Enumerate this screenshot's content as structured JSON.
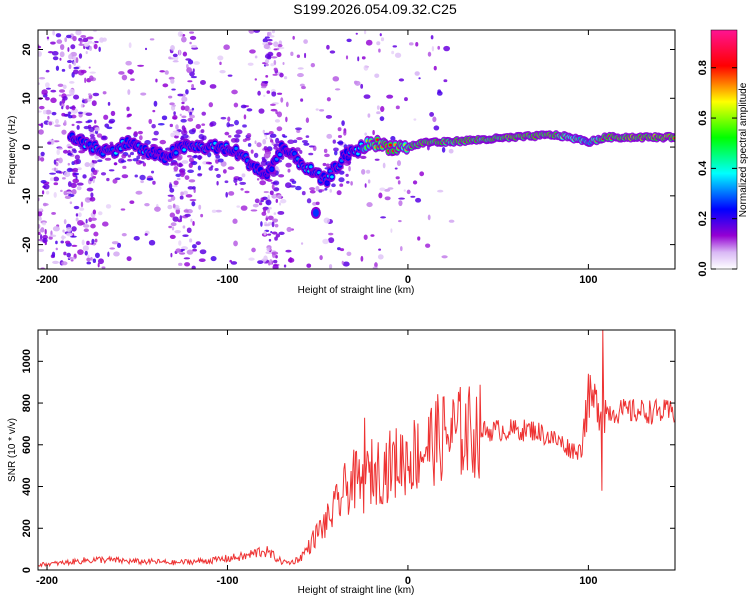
{
  "figure": {
    "title": "S199.2026.054.09.32.C25"
  },
  "chart_data": [
    {
      "type": "heatmap",
      "title": "S199.2026.054.09.32.C25",
      "xlabel": "Height of straight line (km)",
      "ylabel": "Frequency (Hz)",
      "xlim": [
        -205,
        148
      ],
      "ylim": [
        -25,
        24
      ],
      "x_ticks": [
        -200,
        -100,
        0,
        100
      ],
      "y_ticks": [
        -20,
        -10,
        0,
        10,
        20
      ],
      "x_tick_labels": [
        "-200",
        "-100",
        "0",
        "100"
      ],
      "y_tick_labels": [
        "-20",
        "-10",
        "0",
        "10",
        "20"
      ],
      "trace": {
        "description_points_x": [
          -185,
          -175,
          -165,
          -155,
          -145,
          -135,
          -125,
          -115,
          -105,
          -95,
          -85,
          -78,
          -70,
          -60,
          -50,
          -45,
          -40,
          -35,
          -30,
          -25,
          -20,
          -10,
          0,
          10,
          20,
          40,
          60,
          80,
          90,
          100,
          110,
          130,
          148
        ],
        "frequency_hz": [
          2,
          0,
          -1,
          1,
          -1,
          -2,
          0,
          0,
          0,
          -1,
          -4,
          -6,
          0,
          -3,
          -6,
          -7,
          -4,
          -2,
          -1,
          0,
          1,
          0,
          0,
          1,
          1,
          1.5,
          2,
          2.5,
          2,
          1,
          2,
          2,
          2
        ],
        "amplitude": [
          0.3,
          0.35,
          0.35,
          0.3,
          0.25,
          0.2,
          0.3,
          0.35,
          0.3,
          0.35,
          0.3,
          0.2,
          0.25,
          0.3,
          0.35,
          0.3,
          0.3,
          0.25,
          0.3,
          0.5,
          0.75,
          0.85,
          0.7,
          0.9,
          0.85,
          0.85,
          0.9,
          0.9,
          0.7,
          0.6,
          0.9,
          0.95,
          0.95
        ]
      },
      "colorbar": {
        "label": "Normalized spectral amplitude",
        "range": [
          0.0,
          0.95
        ],
        "ticks": [
          0.0,
          0.2,
          0.4,
          0.6,
          0.8
        ],
        "tick_labels": [
          "0.0",
          "0.2",
          "0.4",
          "0.6",
          "0.8"
        ],
        "colors": [
          "#ffffff",
          "#9400d3",
          "#0000ff",
          "#00ffff",
          "#00ff00",
          "#ffff00",
          "#ff0000",
          "#ff00ff"
        ]
      }
    },
    {
      "type": "line",
      "xlabel": "Height of straight line (km)",
      "ylabel": "SNR (10 * v/v)",
      "xlim": [
        -205,
        148
      ],
      "ylim": [
        0,
        1150
      ],
      "x_ticks": [
        -200,
        -100,
        0,
        100
      ],
      "y_ticks": [
        0,
        200,
        400,
        600,
        800,
        1000
      ],
      "x_tick_labels": [
        "-200",
        "-100",
        "0",
        "100"
      ],
      "y_tick_labels": [
        "0",
        "200",
        "400",
        "600",
        "800",
        "1000"
      ],
      "series": [
        {
          "name": "SNR",
          "color": "#ee3333",
          "x": [
            -205,
            -190,
            -180,
            -170,
            -160,
            -150,
            -140,
            -130,
            -120,
            -110,
            -100,
            -90,
            -80,
            -75,
            -70,
            -65,
            -60,
            -55,
            -50,
            -45,
            -40,
            -35,
            -30,
            -25,
            -20,
            -15,
            -10,
            -5,
            0,
            5,
            10,
            15,
            20,
            25,
            30,
            40,
            50,
            60,
            70,
            75,
            80,
            85,
            90,
            95,
            100,
            105,
            110,
            120,
            130,
            148
          ],
          "y": [
            25,
            35,
            45,
            50,
            45,
            40,
            40,
            35,
            40,
            45,
            55,
            65,
            95,
            70,
            40,
            35,
            55,
            110,
            180,
            230,
            300,
            380,
            430,
            400,
            470,
            480,
            500,
            520,
            540,
            560,
            590,
            620,
            640,
            650,
            660,
            665,
            670,
            670,
            670,
            650,
            630,
            610,
            580,
            570,
            820,
            790,
            760,
            760,
            760,
            755
          ]
        }
      ]
    }
  ]
}
